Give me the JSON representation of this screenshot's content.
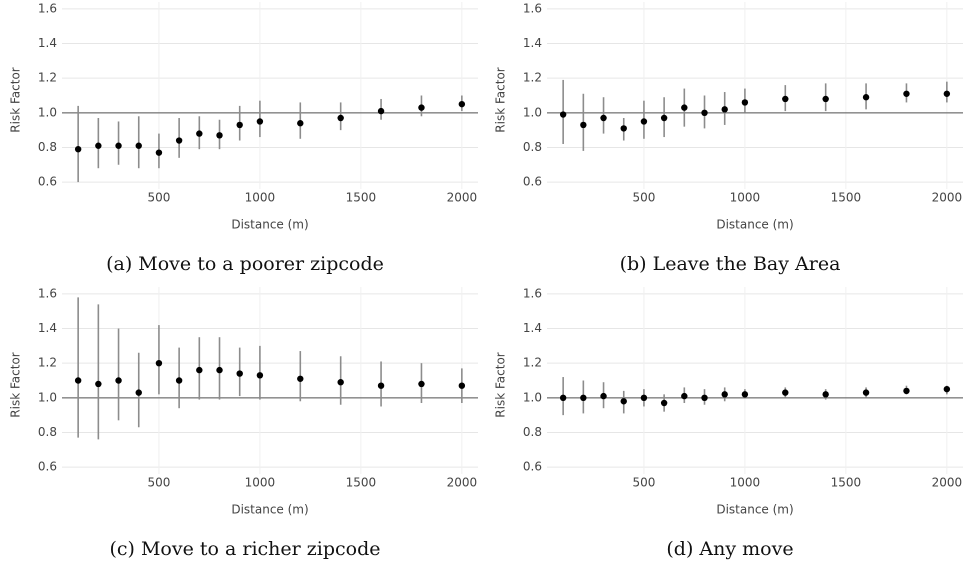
{
  "chart_data": [
    {
      "type": "errorbar",
      "caption": "(a) Move to a poorer zipcode",
      "xlabel": "Distance (m)",
      "ylabel": "Risk Factor",
      "x": [
        100,
        200,
        300,
        400,
        500,
        600,
        700,
        800,
        900,
        1000,
        1200,
        1400,
        1600,
        1800,
        2000
      ],
      "values": [
        0.79,
        0.81,
        0.81,
        0.81,
        0.77,
        0.84,
        0.88,
        0.87,
        0.93,
        0.95,
        0.94,
        0.97,
        1.01,
        1.03,
        1.05
      ],
      "lower": [
        0.6,
        0.68,
        0.7,
        0.68,
        0.68,
        0.74,
        0.79,
        0.79,
        0.84,
        0.86,
        0.85,
        0.9,
        0.96,
        0.98,
        1.01
      ],
      "upper": [
        1.04,
        0.97,
        0.95,
        0.98,
        0.88,
        0.97,
        0.98,
        0.96,
        1.04,
        1.07,
        1.06,
        1.06,
        1.08,
        1.1,
        1.1
      ],
      "hline": 1.0,
      "xlim": [
        20,
        2080
      ],
      "ylim": [
        0.56,
        1.64
      ],
      "xticks": [
        500,
        1000,
        1500,
        2000
      ],
      "yticks": [
        0.6,
        0.8,
        {
          "value": 1.0,
          "label": "1.0"
        },
        1.2,
        1.4,
        1.6
      ],
      "grid": true,
      "color": "#000000",
      "errcolor": "#8c8c8c"
    },
    {
      "type": "errorbar",
      "caption": "(b) Leave the Bay Area",
      "xlabel": "Distance (m)",
      "ylabel": "Risk Factor",
      "x": [
        100,
        200,
        300,
        400,
        500,
        600,
        700,
        800,
        900,
        1000,
        1200,
        1400,
        1600,
        1800,
        2000
      ],
      "values": [
        0.99,
        0.93,
        0.97,
        0.91,
        0.95,
        0.97,
        1.03,
        1.0,
        1.02,
        1.06,
        1.08,
        1.08,
        1.09,
        1.11,
        1.11
      ],
      "lower": [
        0.82,
        0.78,
        0.88,
        0.84,
        0.85,
        0.86,
        0.92,
        0.91,
        0.93,
        1.0,
        1.01,
        1.01,
        1.02,
        1.06,
        1.06
      ],
      "upper": [
        1.19,
        1.11,
        1.09,
        0.97,
        1.07,
        1.09,
        1.14,
        1.1,
        1.12,
        1.14,
        1.16,
        1.17,
        1.17,
        1.17,
        1.18
      ],
      "hline": 1.0,
      "xlim": [
        20,
        2080
      ],
      "ylim": [
        0.56,
        1.64
      ],
      "xticks": [
        500,
        1000,
        1500,
        2000
      ],
      "yticks": [
        0.6,
        0.8,
        {
          "value": 1.0,
          "label": "1.0"
        },
        1.2,
        1.4,
        1.6
      ],
      "grid": true,
      "color": "#000000",
      "errcolor": "#8c8c8c"
    },
    {
      "type": "errorbar",
      "caption": "(c) Move to a richer zipcode",
      "xlabel": "Distance (m)",
      "ylabel": "Risk Factor",
      "x": [
        100,
        200,
        300,
        400,
        500,
        600,
        700,
        800,
        900,
        1000,
        1200,
        1400,
        1600,
        1800,
        2000
      ],
      "values": [
        1.1,
        1.08,
        1.1,
        1.03,
        1.2,
        1.1,
        1.16,
        1.16,
        1.14,
        1.13,
        1.11,
        1.09,
        1.07,
        1.08,
        1.07
      ],
      "lower": [
        0.77,
        0.76,
        0.87,
        0.83,
        1.02,
        0.94,
        0.99,
        0.99,
        1.01,
        0.99,
        0.98,
        0.96,
        0.95,
        0.97,
        0.97
      ],
      "upper": [
        1.58,
        1.54,
        1.4,
        1.26,
        1.42,
        1.29,
        1.35,
        1.35,
        1.29,
        1.3,
        1.27,
        1.24,
        1.21,
        1.2,
        1.17
      ],
      "hline": 1.0,
      "xlim": [
        20,
        2080
      ],
      "ylim": [
        0.56,
        1.64
      ],
      "xticks": [
        500,
        1000,
        1500,
        2000
      ],
      "yticks": [
        0.6,
        0.8,
        {
          "value": 1.0,
          "label": "1.0"
        },
        1.2,
        1.4,
        1.6
      ],
      "grid": true,
      "color": "#000000",
      "errcolor": "#8c8c8c"
    },
    {
      "type": "errorbar",
      "caption": "(d) Any move",
      "xlabel": "Distance (m)",
      "ylabel": "Risk Factor",
      "x": [
        100,
        200,
        300,
        400,
        500,
        600,
        700,
        800,
        900,
        1000,
        1200,
        1400,
        1600,
        1800,
        2000
      ],
      "values": [
        1.0,
        1.0,
        1.01,
        0.98,
        1.0,
        0.97,
        1.01,
        1.0,
        1.02,
        1.02,
        1.03,
        1.02,
        1.03,
        1.04,
        1.05
      ],
      "lower": [
        0.9,
        0.91,
        0.94,
        0.91,
        0.95,
        0.92,
        0.97,
        0.96,
        0.98,
        1.0,
        1.0,
        0.99,
        1.0,
        1.02,
        1.02
      ],
      "upper": [
        1.12,
        1.1,
        1.09,
        1.04,
        1.05,
        1.02,
        1.06,
        1.05,
        1.06,
        1.05,
        1.06,
        1.05,
        1.06,
        1.07,
        1.07
      ],
      "hline": 1.0,
      "xlim": [
        20,
        2080
      ],
      "ylim": [
        0.56,
        1.64
      ],
      "xticks": [
        500,
        1000,
        1500,
        2000
      ],
      "yticks": [
        0.6,
        0.8,
        {
          "value": 1.0,
          "label": "1.0"
        },
        1.2,
        1.4,
        1.6
      ],
      "grid": true,
      "color": "#000000",
      "errcolor": "#8c8c8c"
    }
  ]
}
